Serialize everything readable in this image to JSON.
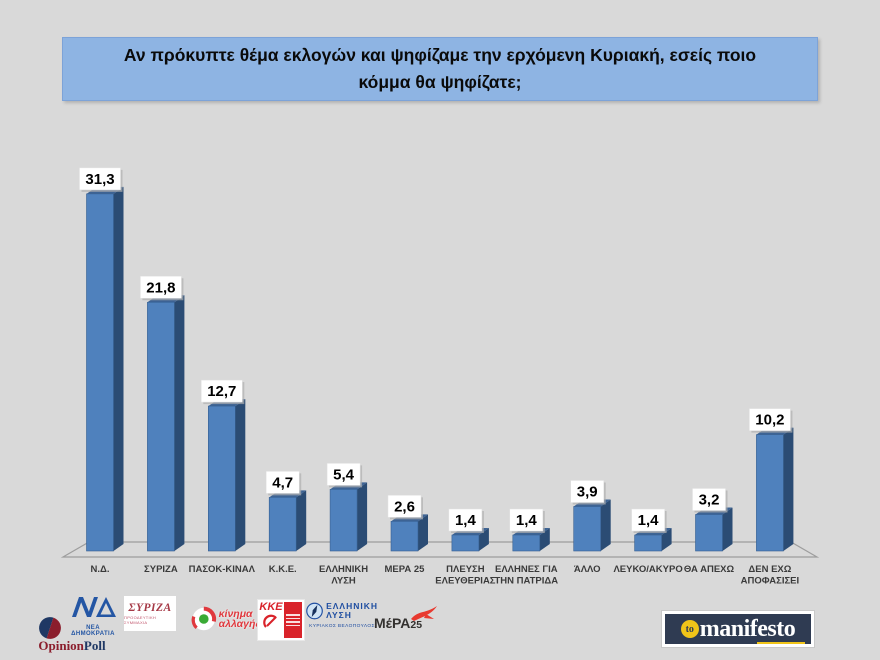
{
  "title": {
    "text": "Αν πρόκυπτε θέμα εκλογών και ψηφίζαμε την ερχόμενη Κυριακή, εσείς ποιο κόμμα θα ψηφίζατε;",
    "bg": "#8eb4e3"
  },
  "chart_data": {
    "type": "bar",
    "style": "3d-column",
    "title": "Αν πρόκυπτε θέμα εκλογών και ψηφίζαμε την ερχόμενη Κυριακή, εσείς ποιο κόμμα θα ψηφίζατε;",
    "categories": [
      "Ν.Δ.",
      "ΣΥΡΙΖΑ",
      "ΠΑΣΟΚ-ΚΙΝΑΛ",
      "Κ.Κ.Ε.",
      "ΕΛΛΗΝΙΚΗ ΛΥΣΗ",
      "ΜΕΡΑ 25",
      "ΠΛΕΥΣΗ ΕΛΕΥΘΕΡΙΑΣ",
      "ΕΛΛΗΝΕΣ ΓΙΑ ΤΗΝ ΠΑΤΡΙΔΑ",
      "ΆΛΛΟ",
      "ΛΕΥΚΟ/ΑΚΥΡΟ",
      "ΘΑ ΑΠΕΧΩ",
      "ΔΕΝ ΕΧΩ ΑΠΟΦΑΣΙΣΕΙ"
    ],
    "categories_wrapped": [
      [
        "Ν.Δ."
      ],
      [
        "ΣΥΡΙΖΑ"
      ],
      [
        "ΠΑΣΟΚ-ΚΙΝΑΛ"
      ],
      [
        "Κ.Κ.Ε."
      ],
      [
        "ΕΛΛΗΝΙΚΗ",
        "ΛΥΣΗ"
      ],
      [
        "ΜΕΡΑ 25"
      ],
      [
        "ΠΛΕΥΣΗ",
        "ΕΛΕΥΘΕΡΙΑΣ"
      ],
      [
        "ΕΛΛΗΝΕΣ ΓΙΑ",
        "ΤΗΝ ΠΑΤΡΙΔΑ"
      ],
      [
        "ΆΛΛΟ"
      ],
      [
        "ΛΕΥΚΟ/ΑΚΥΡΟ"
      ],
      [
        "ΘΑ ΑΠΕΧΩ"
      ],
      [
        "ΔΕΝ ΕΧΩ",
        "ΑΠΟΦΑΣΙΣΕΙ"
      ]
    ],
    "values": [
      31.3,
      21.8,
      12.7,
      4.7,
      5.4,
      2.6,
      1.4,
      1.4,
      3.9,
      1.4,
      3.2,
      10.2
    ],
    "value_labels": [
      "31,3",
      "21,8",
      "12,7",
      "4,7",
      "5,4",
      "2,6",
      "1,4",
      "1,4",
      "3,9",
      "1,4",
      "3,2",
      "10,2"
    ],
    "ylim": [
      0,
      33
    ],
    "grid": false,
    "legend": "none",
    "bar_colors": {
      "front": "#4f81bd",
      "side": "#2b4c74",
      "top": "#3d6394",
      "outline": "#365f91"
    },
    "floor_line_color": "#9d9d9d",
    "label_box_color": "#ffffff",
    "label_text_color": "#000000",
    "category_text_color": "#3a3a3a"
  },
  "footer": {
    "pollster": {
      "name": "OpinionPoll",
      "text_parts": [
        {
          "text": "Opinion",
          "color": "#8b1e2d"
        },
        {
          "text": "Poll",
          "color": "#1f3864"
        }
      ],
      "circle_left_color": "#1f3864",
      "circle_right_color": "#8b1e2d"
    },
    "party_logos": [
      {
        "id": "nd",
        "label": "ΝΕΑ ΔΗΜΟΚΡΑΤΙΑ",
        "color": "#2456a4"
      },
      {
        "id": "syriza",
        "label": "ΣΥΡΙΖΑ",
        "sub": "ΠΡΟΟΔΕΥΤΙΚΗ ΣΥΜΜΑΧΙΑ",
        "color": "#a63a47"
      },
      {
        "id": "kinima-allagis",
        "line1": "κίνημα",
        "line2": "αλλαγής",
        "color": "#e0393e",
        "green": "#3aaa35"
      },
      {
        "id": "kke",
        "label": "ΚΚΕ",
        "color": "#d9232a"
      },
      {
        "id": "elliniki-lysi",
        "line1": "ΕΛΛΗΝΙΚΗ",
        "line2": "ΛΥΣΗ",
        "sub": "ΚΥΡΙΑΚΟΣ ΒΕΛΟΠΟΥΛΟΣ",
        "color": "#1f4ea1"
      },
      {
        "id": "mera25",
        "label": "ΜέΡΑ",
        "suffix": "25",
        "color": "#33312f",
        "accent": "#e8392f"
      }
    ],
    "publisher": {
      "prefix": "to",
      "name": "manifesto",
      "bg": "#2f3b52",
      "accent": "#f0c419"
    }
  }
}
